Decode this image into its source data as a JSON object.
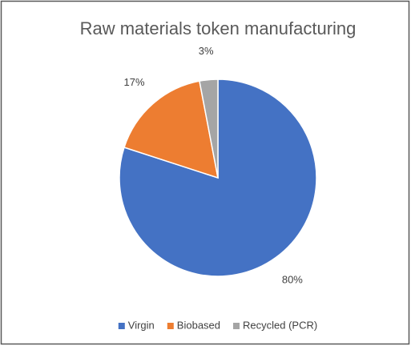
{
  "chart_data": {
    "type": "pie",
    "title": "Raw materials token manufacturing",
    "categories": [
      "Virgin",
      "Biobased",
      "Recycled (PCR)"
    ],
    "values": [
      80,
      17,
      3
    ],
    "value_labels": [
      "80%",
      "17%",
      "3%"
    ],
    "colors": [
      "#4472c4",
      "#ed7d31",
      "#a5a5a5"
    ],
    "legend": "bottom"
  }
}
